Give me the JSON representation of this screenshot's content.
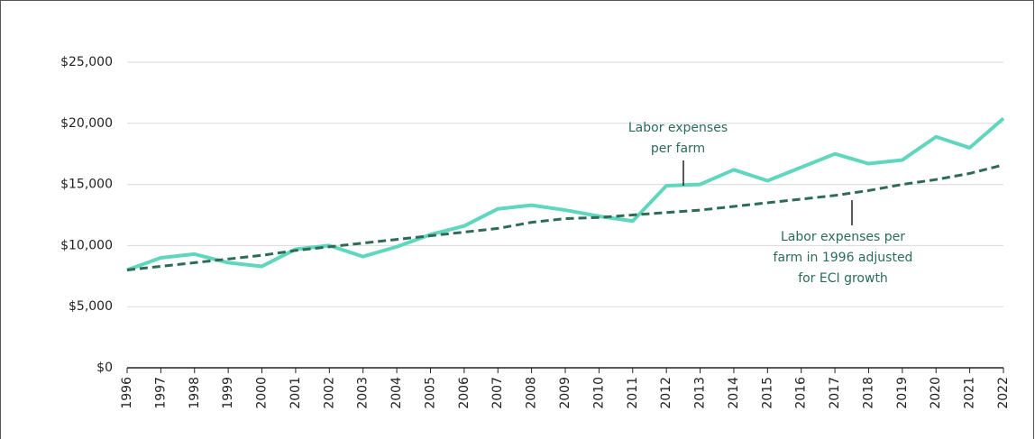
{
  "chart_data": {
    "type": "line",
    "x": [
      1996,
      1997,
      1998,
      1999,
      2000,
      2001,
      2002,
      2003,
      2004,
      2005,
      2006,
      2007,
      2008,
      2009,
      2010,
      2011,
      2012,
      2013,
      2014,
      2015,
      2016,
      2017,
      2018,
      2019,
      2020,
      2021,
      2022
    ],
    "xlim": [
      1996,
      2022
    ],
    "xticks": [
      1996,
      1997,
      1998,
      1999,
      2000,
      2001,
      2002,
      2003,
      2004,
      2005,
      2006,
      2007,
      2008,
      2009,
      2010,
      2011,
      2012,
      2013,
      2014,
      2015,
      2016,
      2017,
      2018,
      2019,
      2020,
      2021,
      2022
    ],
    "ylim": [
      0,
      25000
    ],
    "yticks": [
      {
        "value": 0,
        "label": "$0"
      },
      {
        "value": 5000,
        "label": "$5,000"
      },
      {
        "value": 10000,
        "label": "$10,000"
      },
      {
        "value": 15000,
        "label": "$15,000"
      },
      {
        "value": 20000,
        "label": "$20,000"
      },
      {
        "value": 25000,
        "label": "$25,000"
      }
    ],
    "grid": true,
    "series": [
      {
        "name": "Labor expenses per farm",
        "color": "#5fd6bd",
        "dashed": false,
        "values": [
          8000,
          9000,
          9300,
          8600,
          8300,
          9700,
          10000,
          9100,
          9900,
          10900,
          11600,
          13000,
          13300,
          12900,
          12400,
          12000,
          14900,
          15000,
          16200,
          15300,
          16400,
          17500,
          16700,
          17000,
          18900,
          18000,
          20400
        ]
      },
      {
        "name": "Labor expenses per farm in 1996 adjusted for ECI growth",
        "color": "#2e6b55",
        "dashed": true,
        "values": [
          8000,
          8300,
          8600,
          8900,
          9200,
          9600,
          9900,
          10200,
          10500,
          10800,
          11100,
          11400,
          11900,
          12200,
          12300,
          12500,
          12700,
          12900,
          13200,
          13500,
          13800,
          14100,
          14500,
          15000,
          15400,
          15900,
          16600
        ]
      }
    ],
    "annotations": [
      {
        "lines": [
          "Labor expenses",
          "per farm"
        ]
      },
      {
        "lines": [
          "Labor expenses per",
          "farm in 1996 adjusted",
          "for ECI growth"
        ]
      }
    ]
  }
}
